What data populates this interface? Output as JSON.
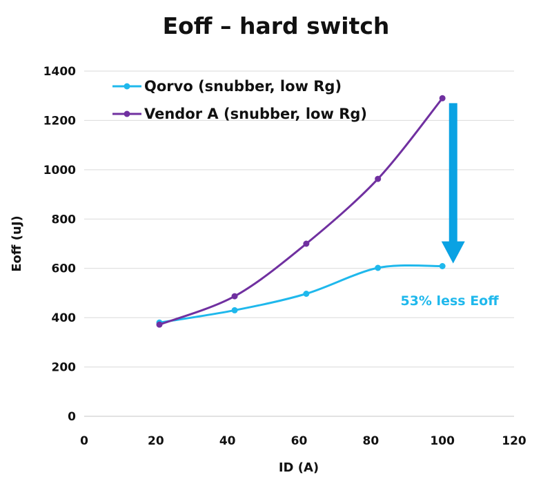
{
  "chart_data": {
    "type": "line",
    "title": "Eoff – hard switch",
    "xlabel": "ID (A)",
    "ylabel": "Eoff (uJ)",
    "xlim": [
      0,
      120
    ],
    "ylim": [
      0,
      1400
    ],
    "xticks": [
      0,
      20,
      40,
      60,
      80,
      100,
      120
    ],
    "yticks": [
      0,
      200,
      400,
      600,
      800,
      1000,
      1200,
      1400
    ],
    "grid": "horizontal",
    "legend": "top-left",
    "series": [
      {
        "name": "Qorvo (snubber, low Rg)",
        "color": "#1fb8ec",
        "x": [
          21,
          42,
          62,
          82,
          100
        ],
        "y": [
          380,
          430,
          497,
          602,
          609
        ]
      },
      {
        "name": "Vendor A (snubber, low Rg)",
        "color": "#7030a0",
        "x": [
          21,
          42,
          62,
          82,
          100
        ],
        "y": [
          372,
          487,
          700,
          963,
          1290
        ]
      }
    ],
    "annotations": [
      {
        "text": "53% less Eoff",
        "color": "#1fb8ec",
        "x": 102,
        "y": 470
      }
    ],
    "arrow": {
      "color": "#0aa2e3",
      "x": 103,
      "y_from": 1270,
      "y_to": 620
    }
  }
}
